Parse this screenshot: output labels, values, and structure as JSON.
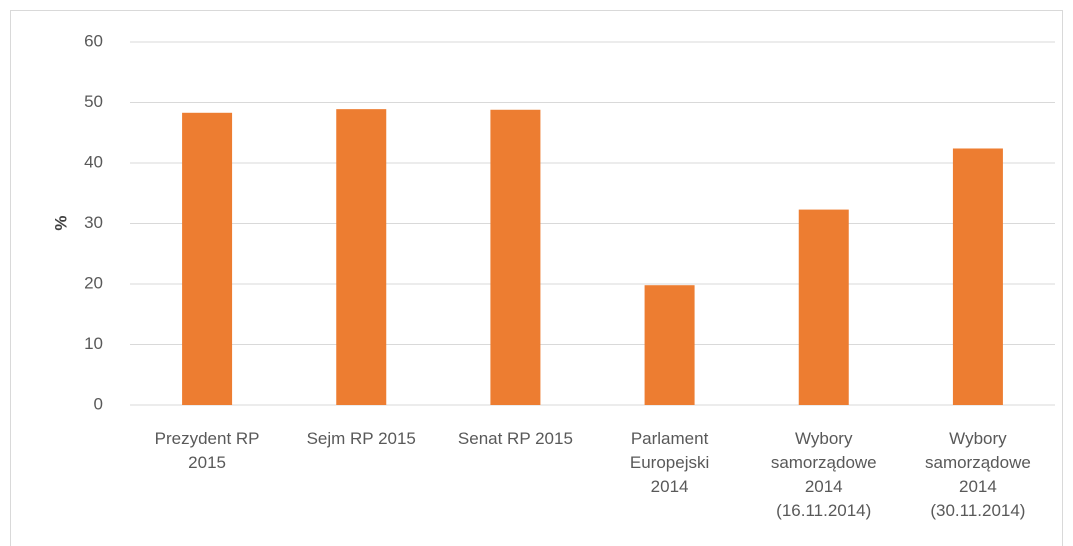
{
  "chart_data": {
    "type": "bar",
    "ylabel": "%",
    "categories": [
      "Prezydent RP\n2015",
      "Sejm RP 2015",
      "Senat RP 2015",
      "Parlament\nEuropejski\n2014",
      "Wybory\nsamorządowe\n2014\n(16.11.2014)",
      "Wybory\nsamorządowe\n2014\n(30.11.2014)"
    ],
    "values": [
      48.3,
      48.9,
      48.8,
      19.8,
      32.3,
      42.4
    ],
    "color": "#ed7d31",
    "ylim": [
      0,
      60
    ],
    "yticks": [
      0,
      10,
      20,
      30,
      40,
      50,
      60
    ],
    "grid": true
  }
}
